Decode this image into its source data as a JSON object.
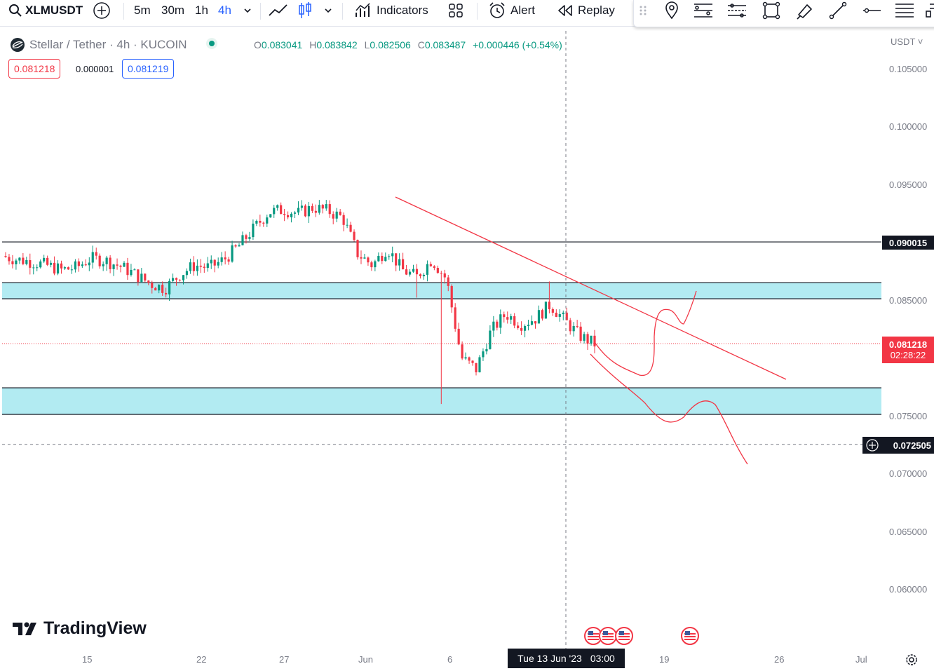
{
  "toolbar": {
    "symbol": "XLMUSDT",
    "intervals": [
      "5m",
      "30m",
      "1h",
      "4h"
    ],
    "active_interval": "4h",
    "indicators_label": "Indicators",
    "alert_label": "Alert",
    "replay_label": "Replay"
  },
  "legend": {
    "title": "Stellar / Tether · 4h · KUCOIN",
    "open_key": "O",
    "open": "0.083041",
    "high_key": "H",
    "high": "0.083842",
    "low_key": "L",
    "low": "0.082506",
    "close_key": "C",
    "close": "0.083487",
    "change": "+0.000446 (+0.54%)",
    "sell_price": "0.081218",
    "spread": "0.000001",
    "buy_price": "0.081219"
  },
  "price_axis": {
    "currency": "USDT",
    "labels": [
      "0.105000",
      "0.100000",
      "0.095000",
      "0.085000",
      "0.075000",
      "0.070000",
      "0.065000",
      "0.060000"
    ],
    "level_tag": "0.090015",
    "last_price_tag": "0.081218",
    "countdown": "02:28:22",
    "crosshair_tag": "0.072505"
  },
  "time_axis": {
    "labels": [
      "15",
      "22",
      "27",
      "Jun",
      "6",
      "19",
      "26",
      "Jul"
    ],
    "crosshair_label": "Tue 13 Jun '23",
    "crosshair_time": "03:00"
  },
  "watermark": "TradingView",
  "colors": {
    "up": "#089981",
    "down": "#f23645",
    "zone_fill": "#b2ebf2",
    "trendline": "#f23645",
    "accent": "#2962ff"
  },
  "chart_data": {
    "type": "candlestick",
    "symbol": "XLMUSDT",
    "interval": "4h",
    "exchange": "KUCOIN",
    "ylim": [
      0.057,
      0.108
    ],
    "last_candle": {
      "open": 0.083041,
      "high": 0.083842,
      "low": 0.082506,
      "close": 0.083487
    },
    "last_price": 0.081218,
    "horizontal_levels": [
      0.090015,
      0.0865,
      0.0851,
      0.0774,
      0.0751
    ],
    "zones": [
      [
        0.0851,
        0.0865
      ],
      [
        0.0751,
        0.0774
      ]
    ],
    "price_series": [
      0.0888,
      0.0885,
      0.0883,
      0.088,
      0.0876,
      0.0878,
      0.0886,
      0.0884,
      0.0879,
      0.0872,
      0.0864,
      0.086,
      0.0872,
      0.088,
      0.0878,
      0.0885,
      0.0897,
      0.0912,
      0.0926,
      0.0928,
      0.0925,
      0.093,
      0.0927,
      0.0921,
      0.089,
      0.088,
      0.0895,
      0.0876,
      0.087,
      0.0885,
      0.0868,
      0.08,
      0.079,
      0.0823,
      0.0838,
      0.0829,
      0.0834,
      0.0846,
      0.0832,
      0.0819,
      0.0812
    ]
  }
}
